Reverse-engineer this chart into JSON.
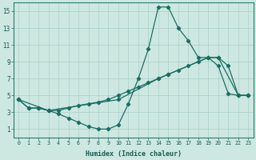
{
  "xlabel": "Humidex (Indice chaleur)",
  "bg_color": "#cce8e0",
  "grid_color": "#aacec8",
  "line_color": "#1a6e64",
  "xlim": [
    -0.5,
    23.5
  ],
  "ylim": [
    0,
    16
  ],
  "xticks": [
    0,
    1,
    2,
    3,
    4,
    5,
    6,
    7,
    8,
    9,
    10,
    11,
    12,
    13,
    14,
    15,
    16,
    17,
    18,
    19,
    20,
    21,
    22,
    23
  ],
  "yticks": [
    1,
    3,
    5,
    7,
    9,
    11,
    13,
    15
  ],
  "series": {
    "line1_peak": {
      "x": [
        0,
        1,
        2,
        3,
        4,
        5,
        6,
        7,
        8,
        9,
        10,
        11,
        12,
        13,
        14,
        15,
        16,
        17,
        18,
        19,
        20,
        21,
        22,
        23
      ],
      "y": [
        4.5,
        3.5,
        3.5,
        3.2,
        2.8,
        2.3,
        1.8,
        1.3,
        1.0,
        1.0,
        1.5,
        4.0,
        7.0,
        10.5,
        15.5,
        15.5,
        13.0,
        11.5,
        9.5,
        9.5,
        8.5,
        5.2,
        5.0,
        5.0
      ]
    },
    "line2_gradual": {
      "x": [
        0,
        1,
        2,
        3,
        4,
        5,
        6,
        7,
        8,
        9,
        10,
        11,
        12,
        13,
        14,
        15,
        16,
        17,
        18,
        19,
        20,
        21,
        22,
        23
      ],
      "y": [
        4.5,
        3.5,
        3.5,
        3.2,
        3.2,
        3.5,
        3.8,
        4.0,
        4.2,
        4.5,
        5.0,
        5.5,
        6.0,
        6.5,
        7.0,
        7.5,
        8.0,
        8.5,
        9.0,
        9.5,
        9.5,
        8.5,
        5.0,
        5.0
      ]
    },
    "line3_straight": {
      "x": [
        0,
        3,
        10,
        14,
        15,
        19,
        20,
        22,
        23
      ],
      "y": [
        4.5,
        3.2,
        4.5,
        7.0,
        7.5,
        9.5,
        9.5,
        5.0,
        5.0
      ]
    }
  }
}
